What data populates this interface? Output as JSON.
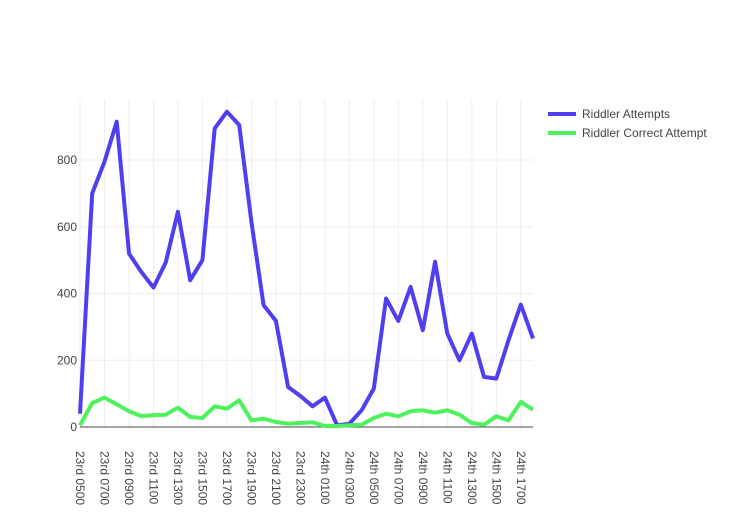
{
  "chart_data": {
    "type": "line",
    "title": "",
    "xlabel": "",
    "ylabel": "",
    "ylim": [
      0,
      980
    ],
    "yticks": [
      0,
      200,
      400,
      600,
      800
    ],
    "grid": true,
    "legend_position": "top-right",
    "x_tick_labels": [
      "23rd 0500",
      "23rd 0700",
      "23rd 0900",
      "23rd 1100",
      "23rd 1300",
      "23rd 1500",
      "23rd 1700",
      "23rd 1900",
      "23rd 2100",
      "23rd 2300",
      "24th 0100",
      "24th 0300",
      "24th 0500",
      "24th 0700",
      "24th 0900",
      "24th 1100",
      "24th 1300",
      "24th 1500",
      "24th 1700"
    ],
    "x_tick_index": [
      0,
      2,
      4,
      6,
      8,
      10,
      12,
      14,
      16,
      18,
      20,
      22,
      24,
      26,
      28,
      30,
      32,
      34,
      36
    ],
    "x_points": 38,
    "series": [
      {
        "name": "Riddler Attempts",
        "color": "#4f3ff0",
        "values": [
          40,
          700,
          795,
          915,
          520,
          465,
          418,
          493,
          645,
          440,
          500,
          895,
          945,
          905,
          615,
          365,
          318,
          120,
          93,
          62,
          88,
          5,
          10,
          50,
          115,
          385,
          318,
          420,
          290,
          495,
          280,
          200,
          280,
          150,
          145,
          260,
          367,
          265
        ]
      },
      {
        "name": "Riddler Correct Attempt",
        "color": "#4df25c",
        "values": [
          5,
          72,
          88,
          68,
          47,
          33,
          35,
          37,
          58,
          30,
          27,
          62,
          55,
          80,
          20,
          25,
          15,
          10,
          12,
          14,
          3,
          3,
          5,
          7,
          27,
          40,
          32,
          47,
          50,
          43,
          50,
          37,
          12,
          7,
          32,
          20,
          75,
          52
        ]
      }
    ]
  }
}
